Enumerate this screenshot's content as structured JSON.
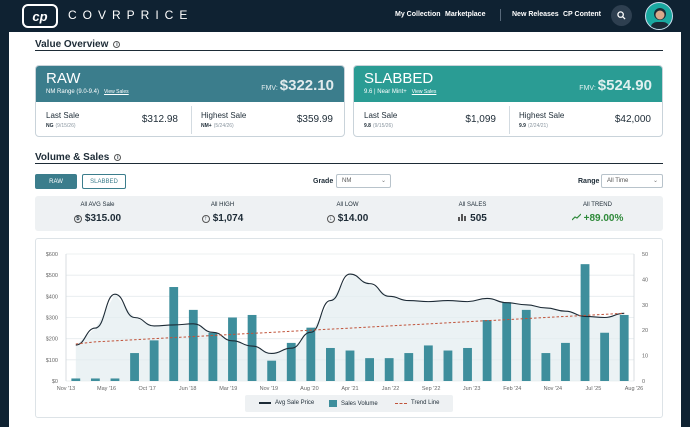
{
  "header": {
    "logo_badge": "cp",
    "logo_word": "COVRPRICE",
    "nav": [
      "My Collection",
      "Marketplace",
      "New Releases",
      "CP Content"
    ]
  },
  "value_overview": {
    "title": "Value Overview",
    "raw": {
      "title": "RAW",
      "range": "NM Range (9.0-9.4)",
      "link": "View Sales",
      "fmv_label": "FMV:",
      "fmv": "$322.10",
      "last_sale_label": "Last Sale",
      "last_sale_grade": "NG",
      "last_sale_date": "(9/15/26)",
      "last_sale_value": "$312.98",
      "highest_label": "Highest Sale",
      "highest_grade": "NM+",
      "highest_date": "(5/24/26)",
      "highest_value": "$359.99",
      "color": "#3b7d8c"
    },
    "slabbed": {
      "title": "SLABBED",
      "range": "9.6 | Near Mint+",
      "link": "View Sales",
      "fmv_label": "FMV:",
      "fmv": "$524.90",
      "last_sale_label": "Last Sale",
      "last_sale_grade": "9.8",
      "last_sale_date": "(9/15/26)",
      "last_sale_value": "$1,099",
      "highest_label": "Highest Sale",
      "highest_grade": "9.9",
      "highest_date": "(2/24/21)",
      "highest_value": "$42,000",
      "color": "#2a9c94"
    }
  },
  "volume_sales": {
    "title": "Volume & Sales",
    "tabs": [
      "RAW",
      "SLABBED"
    ],
    "grade_label": "Grade",
    "grade_value": "NM",
    "range_label": "Range",
    "range_value": "All Time",
    "stats": [
      {
        "label": "All AVG Sale",
        "value": "$315.00",
        "icon": "dollar-icon"
      },
      {
        "label": "All HIGH",
        "value": "$1,074",
        "icon": "up-circle-icon"
      },
      {
        "label": "All LOW",
        "value": "$14.00",
        "icon": "down-circle-icon"
      },
      {
        "label": "All SALES",
        "value": "505",
        "icon": "bar-chart-icon"
      },
      {
        "label": "All TREND",
        "value": "+89.00%",
        "icon": "trend-icon"
      }
    ]
  },
  "chart_data": {
    "type": "bar",
    "x_tick_labels": [
      "Nov '13",
      "May '16",
      "Oct '17",
      "Jun '18",
      "Mar '19",
      "Nov '19",
      "Aug '20",
      "Apr '21",
      "Jan '22",
      "Sep '22",
      "Jun '23",
      "Feb '24",
      "Nov '24",
      "Jul '25",
      "Aug '26"
    ],
    "y_left_ticks": [
      "$0",
      "$100",
      "$200",
      "$300",
      "$400",
      "$500",
      "$600"
    ],
    "y_right_ticks": [
      "0",
      "10",
      "20",
      "30",
      "40",
      "50"
    ],
    "ylim_left": [
      0,
      600
    ],
    "ylim_right": [
      0,
      50
    ],
    "series": [
      {
        "name": "Sales Volume",
        "axis": "right",
        "values": [
          1,
          1,
          1,
          11,
          16,
          37,
          28,
          19,
          25,
          26,
          8,
          15,
          21,
          13,
          12,
          9,
          9,
          11,
          14,
          12,
          13,
          24,
          31,
          28,
          11,
          15,
          46,
          19,
          26
        ]
      },
      {
        "name": "Avg Sale Price",
        "axis": "left",
        "values": [
          170,
          250,
          410,
          300,
          260,
          265,
          270,
          230,
          190,
          165,
          130,
          155,
          230,
          380,
          505,
          460,
          400,
          380,
          375,
          380,
          375,
          390,
          370,
          360,
          345,
          330,
          305,
          300,
          320
        ]
      },
      {
        "name": "Trend Line",
        "axis": "left",
        "values": [
          175,
          185,
          190,
          195,
          200,
          205,
          210,
          215,
          220,
          225,
          230,
          235,
          240,
          245,
          250,
          255,
          260,
          265,
          270,
          275,
          280,
          285,
          290,
          295,
          300,
          305,
          310,
          315,
          320
        ]
      }
    ],
    "grid": true,
    "legend": "bottom-center",
    "colors": {
      "bar": "#3e8e9c",
      "line": "#1d2b36",
      "trend": "#c0533a",
      "area": "#e3ecef"
    }
  }
}
